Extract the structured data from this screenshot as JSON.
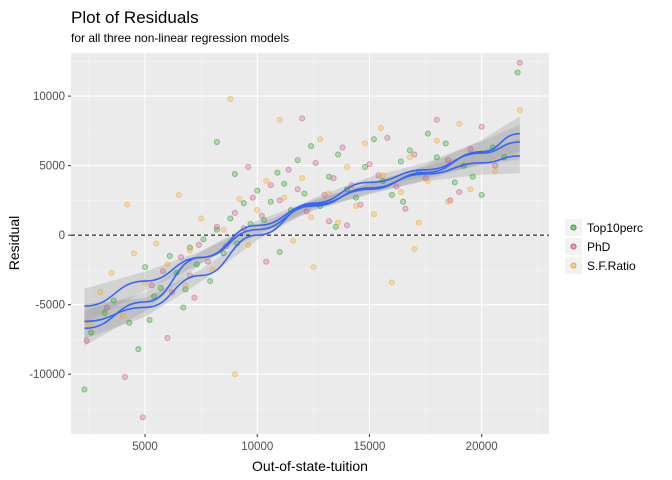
{
  "chart_data": {
    "type": "scatter",
    "title": "Plot of Residuals",
    "subtitle": "for all three non-linear regression models",
    "xlabel": "Out-of-state-tuition",
    "ylabel": "Residual",
    "xlim": [
      1700,
      23000
    ],
    "ylim": [
      -14300,
      13100
    ],
    "xticks": [
      5000,
      10000,
      15000,
      20000
    ],
    "yticks": [
      -10000,
      -5000,
      0,
      5000,
      10000
    ],
    "xtick_labels": [
      "5000",
      "10000",
      "15000",
      "20000"
    ],
    "ytick_labels": [
      "-10000",
      "-5000",
      "0",
      "5000",
      "10000"
    ],
    "hline": 0,
    "grid": true,
    "legend_position": "right",
    "background": "#ebebeb",
    "smooth_color": "#3366ff",
    "series": [
      {
        "name": "Top10perc",
        "color": "#1b9e1b",
        "points": [
          [
            2300,
            -11100
          ],
          [
            2600,
            -7000
          ],
          [
            3200,
            -5600
          ],
          [
            3600,
            -4700
          ],
          [
            4300,
            -6300
          ],
          [
            4700,
            -8200
          ],
          [
            5000,
            -2300
          ],
          [
            5400,
            -4400
          ],
          [
            5700,
            -3800
          ],
          [
            6100,
            -1500
          ],
          [
            6400,
            -2700
          ],
          [
            6700,
            -5200
          ],
          [
            7000,
            -900
          ],
          [
            7300,
            -2100
          ],
          [
            7600,
            -300
          ],
          [
            7900,
            -3300
          ],
          [
            8200,
            400
          ],
          [
            8500,
            -1300
          ],
          [
            8800,
            1200
          ],
          [
            9100,
            -600
          ],
          [
            9400,
            2300
          ],
          [
            9700,
            800
          ],
          [
            10000,
            3200
          ],
          [
            10300,
            1100
          ],
          [
            10600,
            2400
          ],
          [
            10900,
            4500
          ],
          [
            11200,
            3700
          ],
          [
            11500,
            1800
          ],
          [
            11800,
            5400
          ],
          [
            12100,
            3000
          ],
          [
            12400,
            6400
          ],
          [
            12800,
            2100
          ],
          [
            13200,
            4200
          ],
          [
            13600,
            5800
          ],
          [
            14000,
            3300
          ],
          [
            14400,
            2700
          ],
          [
            14800,
            4900
          ],
          [
            15200,
            6900
          ],
          [
            15600,
            3900
          ],
          [
            16000,
            2900
          ],
          [
            16400,
            5300
          ],
          [
            16800,
            6100
          ],
          [
            17200,
            4500
          ],
          [
            17600,
            7300
          ],
          [
            18000,
            5600
          ],
          [
            18400,
            6600
          ],
          [
            18800,
            3800
          ],
          [
            19200,
            5000
          ],
          [
            19600,
            4200
          ],
          [
            20000,
            2900
          ],
          [
            20500,
            6300
          ],
          [
            21000,
            5600
          ],
          [
            21600,
            11700
          ],
          [
            8200,
            6700
          ],
          [
            6800,
            -3900
          ],
          [
            11000,
            -1200
          ],
          [
            13500,
            600
          ],
          [
            16500,
            2400
          ],
          [
            5200,
            -6100
          ],
          [
            9000,
            4400
          ]
        ]
      },
      {
        "name": "PhD",
        "color": "#c8507f",
        "points": [
          [
            2400,
            -7600
          ],
          [
            3300,
            -5200
          ],
          [
            4100,
            -10200
          ],
          [
            4900,
            -13100
          ],
          [
            5300,
            -3600
          ],
          [
            5800,
            -2600
          ],
          [
            6200,
            -4100
          ],
          [
            6600,
            -1600
          ],
          [
            7000,
            -2900
          ],
          [
            7400,
            -700
          ],
          [
            7800,
            -1900
          ],
          [
            8200,
            600
          ],
          [
            8600,
            -800
          ],
          [
            9000,
            1600
          ],
          [
            9400,
            500
          ],
          [
            9800,
            2700
          ],
          [
            10200,
            1400
          ],
          [
            10600,
            3600
          ],
          [
            11000,
            2500
          ],
          [
            11400,
            4700
          ],
          [
            11800,
            3300
          ],
          [
            12200,
            1700
          ],
          [
            12600,
            5200
          ],
          [
            13000,
            2900
          ],
          [
            13400,
            4100
          ],
          [
            13800,
            6300
          ],
          [
            14200,
            3600
          ],
          [
            14600,
            2200
          ],
          [
            15000,
            5100
          ],
          [
            15400,
            4300
          ],
          [
            15800,
            7000
          ],
          [
            16200,
            3500
          ],
          [
            16600,
            1900
          ],
          [
            17000,
            5800
          ],
          [
            17500,
            4100
          ],
          [
            18000,
            8300
          ],
          [
            18500,
            5400
          ],
          [
            19000,
            3100
          ],
          [
            19500,
            6200
          ],
          [
            20000,
            7800
          ],
          [
            20600,
            5000
          ],
          [
            21700,
            12400
          ],
          [
            12000,
            8400
          ],
          [
            7200,
            -4500
          ],
          [
            10400,
            -1900
          ],
          [
            14000,
            700
          ],
          [
            18600,
            2500
          ],
          [
            6000,
            -7400
          ],
          [
            9600,
            4900
          ],
          [
            13200,
            1000
          ]
        ]
      },
      {
        "name": "S.F.Ratio",
        "color": "#f5a623",
        "points": [
          [
            2500,
            -6400
          ],
          [
            3000,
            -4100
          ],
          [
            3500,
            -2700
          ],
          [
            4000,
            -5800
          ],
          [
            4500,
            -1300
          ],
          [
            5000,
            -3400
          ],
          [
            5500,
            -600
          ],
          [
            6000,
            -2100
          ],
          [
            6500,
            2900
          ],
          [
            7000,
            -1100
          ],
          [
            7500,
            1200
          ],
          [
            8000,
            -2500
          ],
          [
            8500,
            400
          ],
          [
            8800,
            9800
          ],
          [
            9200,
            2600
          ],
          [
            9600,
            -700
          ],
          [
            10000,
            1800
          ],
          [
            10400,
            3900
          ],
          [
            10800,
            700
          ],
          [
            11200,
            2700
          ],
          [
            11600,
            -400
          ],
          [
            12000,
            4100
          ],
          [
            12400,
            1300
          ],
          [
            12800,
            6900
          ],
          [
            13200,
            3000
          ],
          [
            13600,
            900
          ],
          [
            14000,
            4900
          ],
          [
            14400,
            2100
          ],
          [
            14800,
            6600
          ],
          [
            15200,
            1500
          ],
          [
            15600,
            4300
          ],
          [
            16000,
            -3400
          ],
          [
            16400,
            3100
          ],
          [
            16800,
            5600
          ],
          [
            17200,
            900
          ],
          [
            17600,
            3900
          ],
          [
            18000,
            6800
          ],
          [
            18500,
            2400
          ],
          [
            19000,
            8000
          ],
          [
            19500,
            3300
          ],
          [
            20000,
            5900
          ],
          [
            20600,
            4600
          ],
          [
            21700,
            9000
          ],
          [
            9000,
            -10000
          ],
          [
            6800,
            -3600
          ],
          [
            11000,
            8300
          ],
          [
            15500,
            7700
          ],
          [
            4200,
            2200
          ],
          [
            12500,
            -2300
          ],
          [
            17000,
            -1000
          ]
        ]
      }
    ],
    "smooths": [
      {
        "x": [
          2300,
          5000,
          7500,
          10000,
          12500,
          15000,
          17500,
          20000,
          21700
        ],
        "y": [
          -5100,
          -3300,
          -1600,
          400,
          2100,
          3400,
          4400,
          5200,
          5700
        ]
      },
      {
        "x": [
          2300,
          5000,
          7500,
          10000,
          12500,
          15000,
          17500,
          20000,
          21700
        ],
        "y": [
          -6700,
          -4800,
          -1600,
          700,
          2200,
          3300,
          4500,
          6000,
          7300
        ]
      },
      {
        "x": [
          2300,
          5000,
          7500,
          10000,
          12500,
          15000,
          17500,
          20000,
          21700
        ],
        "y": [
          -6200,
          -5200,
          -2900,
          0,
          2300,
          3800,
          4700,
          5900,
          6700
        ]
      }
    ]
  }
}
